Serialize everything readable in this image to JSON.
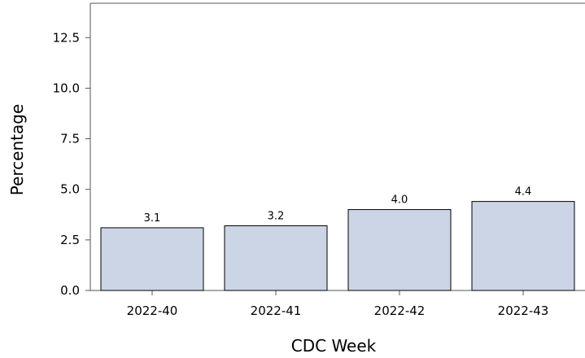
{
  "chart_data": {
    "type": "bar",
    "title": "",
    "xlabel": "CDC Week",
    "ylabel": "Percentage",
    "categories": [
      "2022-40",
      "2022-41",
      "2022-42",
      "2022-43"
    ],
    "values": [
      3.1,
      3.2,
      4.0,
      4.4
    ],
    "data_labels": [
      "3.1",
      "3.2",
      "4.0",
      "4.4"
    ],
    "ylim": [
      0,
      14.2
    ],
    "yticks": [
      0.0,
      2.5,
      5.0,
      7.5,
      10.0,
      12.5
    ],
    "ytick_labels": [
      "0.0",
      "2.5",
      "5.0",
      "7.5",
      "10.0",
      "12.5"
    ],
    "grid": false,
    "legend": "none",
    "bar_color": "#cbd5e6",
    "bar_edge_color": "#000000",
    "axis_color": "#555555"
  }
}
